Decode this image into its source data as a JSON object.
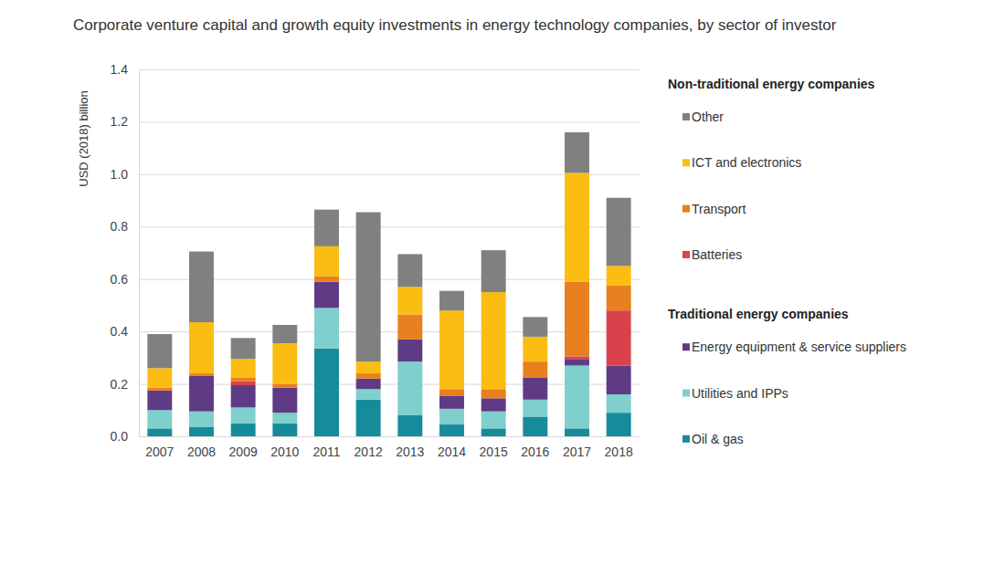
{
  "chart_data": {
    "type": "bar",
    "stacked": true,
    "grid": true,
    "title": "Corporate venture capital and growth equity investments in energy technology companies, by sector of investor",
    "y_label": "USD (2018) billion",
    "categories": [
      "2007",
      "2008",
      "2009",
      "2010",
      "2011",
      "2012",
      "2013",
      "2014",
      "2015",
      "2016",
      "2017",
      "2018"
    ],
    "ylim": [
      0,
      1.4
    ],
    "yticks": [
      {
        "value": 0,
        "label": "0.0"
      },
      0.2,
      0.4,
      0.6,
      0.8,
      {
        "value": 1,
        "label": "1.0"
      },
      1.2,
      1.4
    ],
    "series": [
      {
        "name": "Oil & gas",
        "color": "#168b9c",
        "values": [
          0.03,
          0.035,
          0.05,
          0.05,
          0.335,
          0.14,
          0.08,
          0.045,
          0.03,
          0.075,
          0.03,
          0.09
        ]
      },
      {
        "name": "Utilities and IPPs",
        "color": "#7fcfcc",
        "values": [
          0.07,
          0.06,
          0.06,
          0.04,
          0.155,
          0.04,
          0.205,
          0.06,
          0.065,
          0.065,
          0.24,
          0.07
        ]
      },
      {
        "name": "Energy equipment & service suppliers",
        "color": "#5f3b86",
        "values": [
          0.075,
          0.135,
          0.085,
          0.095,
          0.1,
          0.04,
          0.085,
          0.05,
          0.05,
          0.085,
          0.025,
          0.11
        ]
      },
      {
        "name": "Batteries",
        "color": "#d8434b",
        "values": [
          0,
          0,
          0.015,
          0,
          0,
          0,
          0,
          0,
          0,
          0,
          0.01,
          0.21
        ]
      },
      {
        "name": "Transport",
        "color": "#e8801f",
        "values": [
          0.01,
          0.01,
          0.015,
          0.015,
          0.02,
          0.02,
          0.095,
          0.025,
          0.035,
          0.06,
          0.285,
          0.095
        ]
      },
      {
        "name": "ICT and electronics",
        "color": "#fbbd12",
        "values": [
          0.075,
          0.195,
          0.07,
          0.155,
          0.115,
          0.045,
          0.105,
          0.3,
          0.37,
          0.095,
          0.415,
          0.075
        ]
      },
      {
        "name": "Other",
        "color": "#808080",
        "values": [
          0.13,
          0.27,
          0.08,
          0.07,
          0.14,
          0.57,
          0.125,
          0.075,
          0.16,
          0.075,
          0.155,
          0.26
        ]
      }
    ],
    "legend_groups": [
      {
        "title": "Non-traditional energy companies",
        "series": [
          "Other",
          "ICT and electronics",
          "Transport",
          "Batteries"
        ]
      },
      {
        "title": "Traditional energy companies",
        "series": [
          "Energy equipment & service suppliers",
          "Utilities and IPPs",
          "Oil & gas"
        ]
      }
    ]
  }
}
